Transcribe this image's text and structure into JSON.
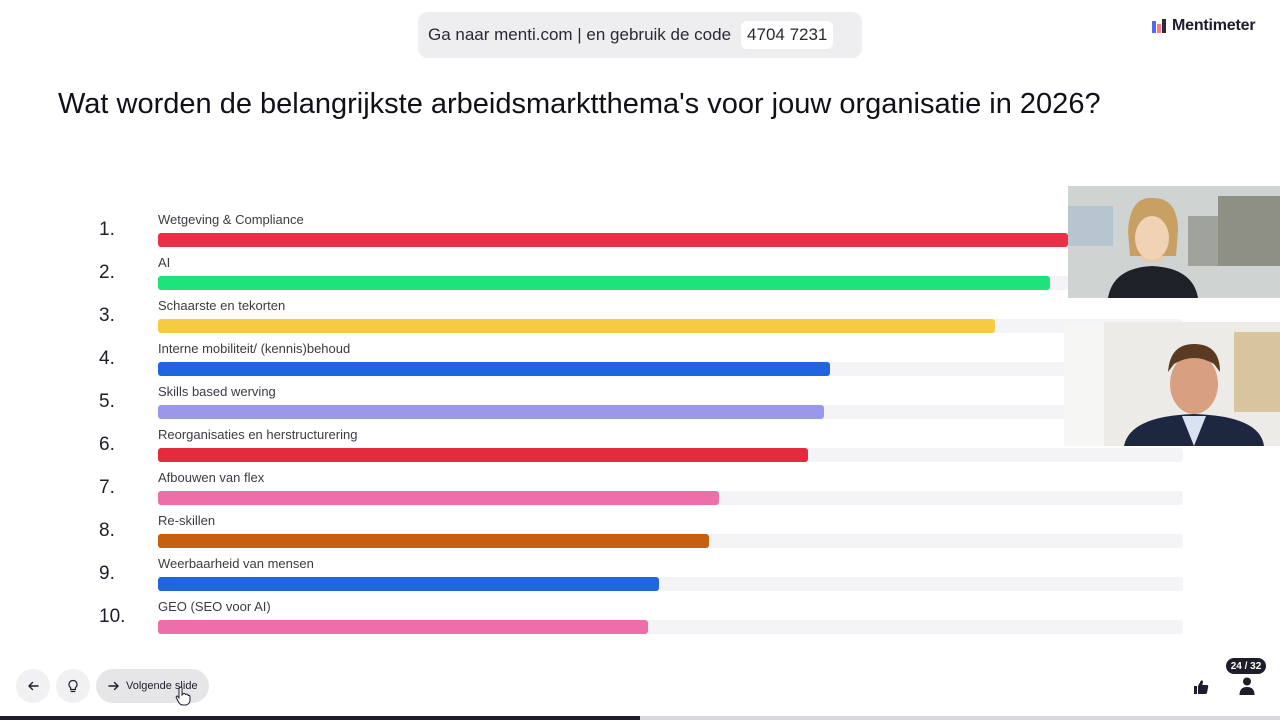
{
  "join_banner": {
    "text": "Ga naar menti.com | en gebruik de code",
    "code": "4704 7231"
  },
  "brand": {
    "name": "Mentimeter"
  },
  "question": "Wat worden de belangrijkste arbeidsmarktthema's voor jouw organisatie in 2026?",
  "ranking": [
    {
      "rank": "1.",
      "label": "Wetgeving & Compliance",
      "score": 1.0,
      "color": "#ea2f46"
    },
    {
      "rank": "2.",
      "label": "AI",
      "score": 0.98,
      "color": "#1ee27a"
    },
    {
      "rank": "3.",
      "label": "Schaarste en tekorten",
      "score": 0.92,
      "color": "#f5cb42"
    },
    {
      "rank": "4.",
      "label": "Interne mobiliteit/ (kennis)behoud",
      "score": 0.738,
      "color": "#1f65e0"
    },
    {
      "rank": "5.",
      "label": "Skills based werving",
      "score": 0.732,
      "color": "#9b98ec"
    },
    {
      "rank": "6.",
      "label": "Reorganisaties en herstructurering",
      "score": 0.714,
      "color": "#e42b3e"
    },
    {
      "rank": "7.",
      "label": "Afbouwen van flex",
      "score": 0.617,
      "color": "#ee6fa8"
    },
    {
      "rank": "8.",
      "label": "Re-skillen",
      "score": 0.605,
      "color": "#c4600f"
    },
    {
      "rank": "9.",
      "label": "Weerbaarheid van mensen",
      "score": 0.55,
      "color": "#1f65e0"
    },
    {
      "rank": "10.",
      "label": "GEO (SEO voor AI)",
      "score": 0.538,
      "color": "#ee6fa8"
    }
  ],
  "controls": {
    "back_icon": "arrow-left-icon",
    "hint_icon": "lightbulb-icon",
    "next_icon": "arrow-right-icon",
    "next_label": "Volgende slide"
  },
  "slide_counter": "24 / 32",
  "progress": 0.5,
  "icons": {
    "reaction": "thumbs-up-icon",
    "audience": "person-icon"
  }
}
